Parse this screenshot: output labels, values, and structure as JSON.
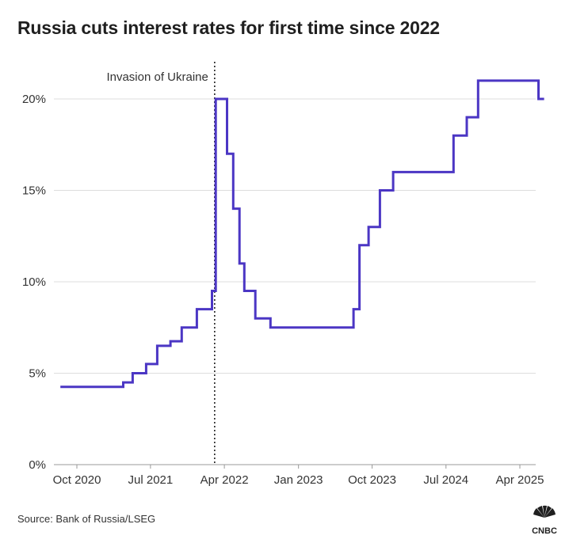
{
  "title": "Russia cuts interest rates for first time since 2022",
  "source": "Source: Bank of Russia/LSEG",
  "logo_text": "CNBC",
  "colors": {
    "line": "#4b36c4",
    "grid": "#dddddd",
    "text": "#333333"
  },
  "chart_data": {
    "type": "line",
    "step": true,
    "title": "Russia cuts interest rates for first time since 2022",
    "xlabel": "",
    "ylabel": "",
    "ylim": [
      0,
      20
    ],
    "yticks": [
      0,
      5,
      10,
      15,
      20
    ],
    "ytick_labels": [
      "0%",
      "5%",
      "10%",
      "15%",
      "20%"
    ],
    "xlim": [
      "2020-08",
      "2025-06"
    ],
    "xticks": [
      "2020-10",
      "2021-07",
      "2022-04",
      "2023-01",
      "2023-10",
      "2024-07",
      "2025-04"
    ],
    "xtick_labels": [
      "Oct 2020",
      "Jul 2021",
      "Apr 2022",
      "Jan 2023",
      "Oct 2023",
      "Jul 2024",
      "Apr 2025"
    ],
    "grid": true,
    "annotation": {
      "label": "Invasion of Ukraine",
      "x": "2022-02-24"
    },
    "series": [
      {
        "values": [
          {
            "x": "2020-08-01",
            "y": 4.25
          },
          {
            "x": "2021-03-22",
            "y": 4.5
          },
          {
            "x": "2021-04-26",
            "y": 5.0
          },
          {
            "x": "2021-06-15",
            "y": 5.5
          },
          {
            "x": "2021-07-26",
            "y": 6.5
          },
          {
            "x": "2021-09-13",
            "y": 6.75
          },
          {
            "x": "2021-10-25",
            "y": 7.5
          },
          {
            "x": "2021-12-20",
            "y": 8.5
          },
          {
            "x": "2022-02-14",
            "y": 9.5
          },
          {
            "x": "2022-02-28",
            "y": 20
          },
          {
            "x": "2022-04-11",
            "y": 17
          },
          {
            "x": "2022-05-04",
            "y": 14
          },
          {
            "x": "2022-05-27",
            "y": 11
          },
          {
            "x": "2022-06-14",
            "y": 9.5
          },
          {
            "x": "2022-07-25",
            "y": 8.0
          },
          {
            "x": "2022-09-19",
            "y": 7.5
          },
          {
            "x": "2023-07-24",
            "y": 8.5
          },
          {
            "x": "2023-08-15",
            "y": 12
          },
          {
            "x": "2023-09-18",
            "y": 13
          },
          {
            "x": "2023-10-30",
            "y": 15
          },
          {
            "x": "2023-12-18",
            "y": 16
          },
          {
            "x": "2024-07-29",
            "y": 18
          },
          {
            "x": "2024-09-16",
            "y": 19
          },
          {
            "x": "2024-10-28",
            "y": 21
          },
          {
            "x": "2025-06-09",
            "y": 20
          },
          {
            "x": "2025-06-30",
            "y": 20
          }
        ]
      }
    ]
  }
}
